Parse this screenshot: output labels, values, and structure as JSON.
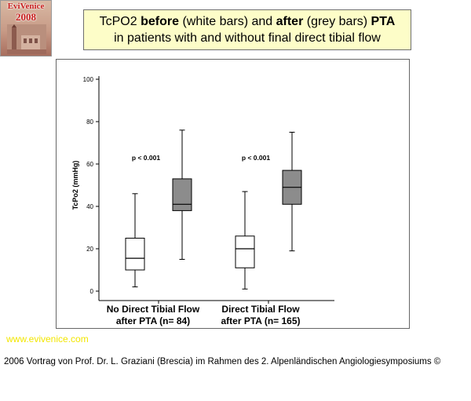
{
  "logo": {
    "line1": "EviVenice",
    "line2": "2008"
  },
  "title": {
    "line1_parts": [
      "TcPO2 ",
      "before",
      " (white bars) and ",
      "after",
      " (grey bars) ",
      "PTA"
    ],
    "line2": "in patients with and without final direct tibial flow"
  },
  "website": "www.evivenice.com",
  "footer": "2006 Vortrag von Prof. Dr. L. Graziani (Brescia) im Rahmen des 2. Alpenländischen Angiologiesymposiums ©",
  "chart_data": {
    "type": "boxplot",
    "ylabel": "TcPo2 (mmHg)",
    "ylim": [
      0,
      100
    ],
    "yticks": [
      0,
      20,
      40,
      60,
      80,
      100
    ],
    "fill_colors": {
      "before": "#ffffff",
      "after": "#8c8c8c"
    },
    "groups": [
      {
        "label_lines": [
          "No Direct Tibial Flow",
          "after PTA (n= 84)"
        ],
        "annotation": "p < 0.001",
        "boxes": [
          {
            "phase": "before",
            "min": 2,
            "q1": 10,
            "median": 15.5,
            "q3": 25,
            "max": 46
          },
          {
            "phase": "after",
            "min": 15,
            "q1": 38,
            "median": 41,
            "q3": 53,
            "max": 76
          }
        ]
      },
      {
        "label_lines": [
          "Direct Tibial Flow",
          "after PTA (n= 165)"
        ],
        "annotation": "p < 0.001",
        "boxes": [
          {
            "phase": "before",
            "min": 1,
            "q1": 11,
            "median": 20,
            "q3": 26,
            "max": 47
          },
          {
            "phase": "after",
            "min": 19,
            "q1": 41,
            "median": 49,
            "q3": 57,
            "max": 75
          }
        ]
      }
    ]
  }
}
